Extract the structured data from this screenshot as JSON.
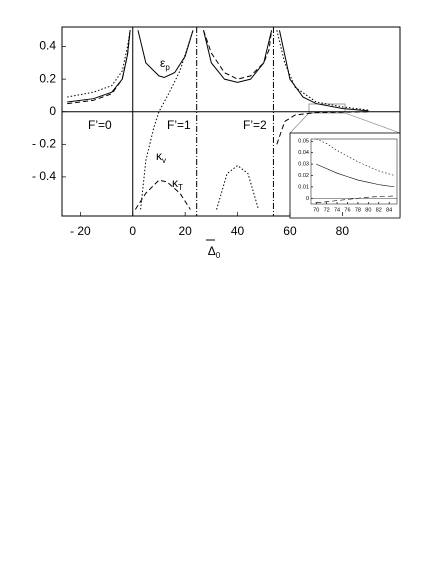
{
  "chart_data": [
    {
      "type": "line",
      "x_label": "Δ0",
      "xlim": [
        -27,
        102
      ],
      "ylim": [
        -0.64,
        0.52
      ],
      "xticks": [
        {
          "value": -20,
          "label": "- 20"
        },
        0,
        20,
        40,
        60,
        80
      ],
      "yticks": [
        0.4,
        0.2,
        0,
        {
          "value": -0.2,
          "label": "- 0.2"
        },
        {
          "value": -0.4,
          "label": "- 0.4"
        }
      ],
      "resonances": [
        0,
        24.4,
        53.7
      ],
      "annotations": [
        "F’=0",
        "F’=1",
        "F’=2",
        "εp",
        "κv",
        "κT"
      ],
      "series": [
        {
          "style": "solid",
          "color": "#000000",
          "x": [
            -25,
            -15,
            -8,
            -4,
            -2,
            -1,
            null,
            2,
            5,
            10,
            12,
            16,
            20,
            23,
            null,
            27,
            30,
            35,
            40,
            45,
            50,
            53,
            null,
            56,
            60,
            65,
            70,
            80,
            90
          ],
          "values": [
            0.06,
            0.08,
            0.12,
            0.2,
            0.35,
            0.5,
            null,
            0.5,
            0.3,
            0.22,
            0.21,
            0.24,
            0.34,
            0.5,
            null,
            0.5,
            0.3,
            0.2,
            0.18,
            0.2,
            0.3,
            0.5,
            null,
            0.5,
            0.2,
            0.09,
            0.05,
            0.02,
            0.005
          ]
        },
        {
          "style": "dashed",
          "color": "#000000",
          "x": [
            -25,
            -15,
            -8,
            -4,
            -2,
            -1,
            null,
            1,
            5,
            10,
            13,
            18,
            22,
            null,
            27,
            30,
            35,
            40,
            45,
            50,
            52,
            53,
            null,
            55,
            58,
            62,
            70,
            90
          ],
          "values": [
            0.05,
            0.07,
            0.11,
            0.2,
            0.35,
            0.5,
            null,
            -0.6,
            -0.5,
            -0.42,
            -0.43,
            -0.5,
            -0.6,
            null,
            0.5,
            0.36,
            0.24,
            0.2,
            0.22,
            0.3,
            0.38,
            0.5,
            null,
            -0.2,
            -0.06,
            -0.02,
            -0.005,
            0
          ]
        },
        {
          "style": "dotted",
          "color": "#000000",
          "x": [
            -25,
            -15,
            -8,
            -4,
            -2,
            -1,
            null,
            3,
            5,
            8,
            10,
            14,
            18,
            21,
            23,
            null,
            32,
            36,
            40,
            44,
            48,
            null,
            55,
            58,
            62,
            70,
            80,
            90
          ],
          "values": [
            0.09,
            0.12,
            0.16,
            0.25,
            0.4,
            0.5,
            null,
            -0.6,
            -0.3,
            -0.1,
            0,
            0.12,
            0.25,
            0.4,
            0.5,
            null,
            -0.6,
            -0.38,
            -0.33,
            -0.38,
            -0.6,
            null,
            0.5,
            0.3,
            0.15,
            0.06,
            0.03,
            0.01
          ]
        }
      ]
    },
    {
      "type": "line",
      "xlim": [
        69,
        85.5
      ],
      "ylim": [
        -0.005,
        0.052
      ],
      "xticks": [
        70,
        72,
        74,
        76,
        78,
        80,
        82,
        84
      ],
      "yticks": [
        0.05,
        0.04,
        0.03,
        0.02,
        0.01,
        0
      ],
      "series": [
        {
          "style": "solid",
          "color": "#000000",
          "x": [
            70,
            72,
            74,
            76,
            78,
            80,
            82,
            85
          ],
          "values": [
            0.03,
            0.026,
            0.022,
            0.019,
            0.016,
            0.014,
            0.012,
            0.01
          ]
        },
        {
          "style": "dotted",
          "color": "#000000",
          "x": [
            70,
            72,
            74,
            76,
            78,
            80,
            82,
            85
          ],
          "values": [
            0.052,
            0.048,
            0.042,
            0.037,
            0.032,
            0.028,
            0.024,
            0.02
          ]
        },
        {
          "style": "dashed",
          "color": "#000000",
          "x": [
            70,
            72,
            74,
            76,
            78,
            80,
            82,
            85
          ],
          "values": [
            -0.004,
            -0.003,
            -0.002,
            -0.001,
            0,
            0.001,
            0.0015,
            0.002
          ]
        }
      ]
    }
  ]
}
